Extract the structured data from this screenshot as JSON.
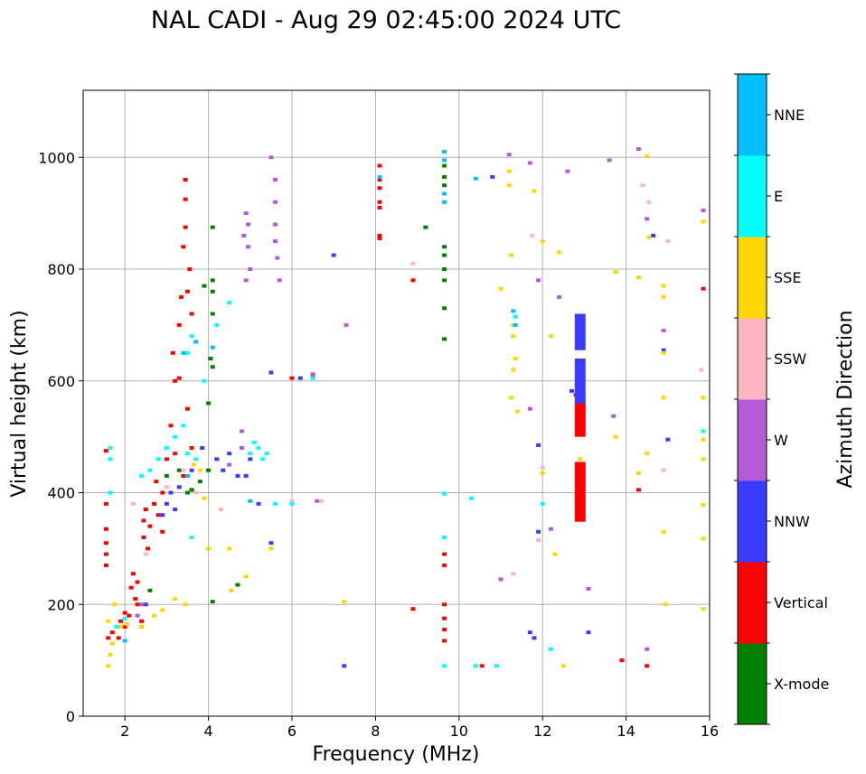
{
  "chart_data": {
    "type": "scatter",
    "title": "NAL CADI - Aug 29 02:45:00 2024 UTC",
    "xlabel": "Frequency (MHz)",
    "ylabel": "Virtual height (km)",
    "xlim": [
      1,
      16
    ],
    "ylim": [
      0,
      1120
    ],
    "xticks": [
      2,
      4,
      6,
      8,
      10,
      12,
      14,
      16
    ],
    "yticks": [
      0,
      200,
      400,
      600,
      800,
      1000
    ],
    "grid": true,
    "colorbar": {
      "title": "Azimuth Direction",
      "categories": [
        {
          "name": "X-mode",
          "color": "#008000"
        },
        {
          "name": "Vertical",
          "color": "#ff0000"
        },
        {
          "name": "NNW",
          "color": "#3b3bff"
        },
        {
          "name": "W",
          "color": "#b65bd6"
        },
        {
          "name": "SSW",
          "color": "#ffb6c1"
        },
        {
          "name": "SSE",
          "color": "#ffd700"
        },
        {
          "name": "E",
          "color": "#00ffff"
        },
        {
          "name": "NNE",
          "color": "#00bfff"
        }
      ]
    },
    "series": [
      {
        "name": "X-mode",
        "points": [
          [
            3.5,
            400
          ],
          [
            3.6,
            405
          ],
          [
            3.8,
            420
          ],
          [
            4.0,
            440
          ],
          [
            4.1,
            780
          ],
          [
            4.1,
            760
          ],
          [
            4.1,
            720
          ],
          [
            4.05,
            640
          ],
          [
            4.1,
            625
          ],
          [
            4.0,
            560
          ],
          [
            4.1,
            875
          ],
          [
            3.9,
            770
          ],
          [
            4.7,
            235
          ],
          [
            4.1,
            205
          ],
          [
            2.6,
            225
          ],
          [
            3.6,
            405
          ],
          [
            9.65,
            985
          ],
          [
            9.65,
            965
          ],
          [
            9.65,
            950
          ],
          [
            9.65,
            840
          ],
          [
            9.65,
            825
          ],
          [
            9.65,
            800
          ],
          [
            9.65,
            780
          ],
          [
            9.65,
            730
          ],
          [
            9.65,
            675
          ],
          [
            9.2,
            875
          ],
          [
            3.3,
            440
          ],
          [
            3.0,
            430
          ]
        ]
      },
      {
        "name": "Vertical",
        "points": [
          [
            1.55,
            270
          ],
          [
            1.55,
            290
          ],
          [
            1.55,
            310
          ],
          [
            1.55,
            335
          ],
          [
            1.55,
            380
          ],
          [
            1.55,
            475
          ],
          [
            1.6,
            140
          ],
          [
            1.7,
            150
          ],
          [
            1.9,
            170
          ],
          [
            2.0,
            185
          ],
          [
            2.1,
            180
          ],
          [
            2.2,
            255
          ],
          [
            2.3,
            240
          ],
          [
            2.45,
            350
          ],
          [
            2.45,
            320
          ],
          [
            2.5,
            370
          ],
          [
            2.55,
            300
          ],
          [
            2.6,
            340
          ],
          [
            2.7,
            380
          ],
          [
            2.8,
            360
          ],
          [
            2.75,
            420
          ],
          [
            2.9,
            400
          ],
          [
            2.9,
            330
          ],
          [
            3.0,
            460
          ],
          [
            3.1,
            520
          ],
          [
            3.2,
            600
          ],
          [
            3.15,
            650
          ],
          [
            3.3,
            700
          ],
          [
            3.35,
            750
          ],
          [
            3.5,
            760
          ],
          [
            3.6,
            720
          ],
          [
            3.55,
            800
          ],
          [
            3.4,
            840
          ],
          [
            3.45,
            875
          ],
          [
            3.45,
            925
          ],
          [
            3.45,
            960
          ],
          [
            3.3,
            605
          ],
          [
            3.5,
            550
          ],
          [
            3.6,
            480
          ],
          [
            3.4,
            430
          ],
          [
            3.2,
            470
          ],
          [
            2.15,
            230
          ],
          [
            2.25,
            210
          ],
          [
            2.3,
            200
          ],
          [
            2.4,
            170
          ],
          [
            2.0,
            160
          ],
          [
            1.85,
            140
          ],
          [
            6.0,
            605
          ],
          [
            6.5,
            610
          ],
          [
            8.1,
            920
          ],
          [
            8.1,
            945
          ],
          [
            8.1,
            960
          ],
          [
            8.1,
            985
          ],
          [
            8.1,
            910
          ],
          [
            8.1,
            860
          ],
          [
            8.1,
            855
          ],
          [
            8.9,
            780
          ],
          [
            8.9,
            192
          ],
          [
            9.65,
            290
          ],
          [
            9.65,
            270
          ],
          [
            9.65,
            200
          ],
          [
            9.65,
            175
          ],
          [
            9.65,
            155
          ],
          [
            9.65,
            135
          ],
          [
            10.55,
            90
          ],
          [
            12.8,
            575
          ],
          [
            12.9,
            545
          ],
          [
            14.5,
            90
          ],
          [
            15.85,
            765
          ],
          [
            14.3,
            405
          ],
          [
            13.9,
            100
          ]
        ]
      },
      {
        "name": "NNW",
        "points": [
          [
            2.9,
            360
          ],
          [
            3.0,
            380
          ],
          [
            3.1,
            400
          ],
          [
            3.2,
            370
          ],
          [
            3.3,
            410
          ],
          [
            3.6,
            440
          ],
          [
            3.85,
            480
          ],
          [
            4.2,
            460
          ],
          [
            4.35,
            440
          ],
          [
            4.5,
            470
          ],
          [
            4.7,
            430
          ],
          [
            4.9,
            430
          ],
          [
            5.0,
            460
          ],
          [
            5.2,
            380
          ],
          [
            5.5,
            310
          ],
          [
            5.5,
            615
          ],
          [
            6.2,
            605
          ],
          [
            2.5,
            200
          ],
          [
            7.0,
            825
          ],
          [
            7.25,
            90
          ],
          [
            10.8,
            965
          ],
          [
            11.9,
            485
          ],
          [
            11.9,
            330
          ],
          [
            11.7,
            150
          ],
          [
            11.8,
            140
          ],
          [
            12.7,
            582
          ],
          [
            13.1,
            150
          ],
          [
            14.65,
            860
          ],
          [
            14.9,
            655
          ],
          [
            15.0,
            495
          ]
        ]
      },
      {
        "name": "W",
        "points": [
          [
            4.9,
            900
          ],
          [
            4.95,
            880
          ],
          [
            4.85,
            860
          ],
          [
            4.95,
            840
          ],
          [
            5.0,
            800
          ],
          [
            4.9,
            780
          ],
          [
            5.6,
            920
          ],
          [
            5.6,
            880
          ],
          [
            5.6,
            850
          ],
          [
            5.65,
            820
          ],
          [
            5.7,
            780
          ],
          [
            5.5,
            1000
          ],
          [
            5.6,
            960
          ],
          [
            4.8,
            510
          ],
          [
            4.8,
            480
          ],
          [
            4.5,
            450
          ],
          [
            2.3,
            180
          ],
          [
            2.4,
            200
          ],
          [
            6.6,
            385
          ],
          [
            6.5,
            612
          ],
          [
            11.2,
            1005
          ],
          [
            11.7,
            990
          ],
          [
            11.0,
            245
          ],
          [
            11.7,
            550
          ],
          [
            11.9,
            780
          ],
          [
            12.2,
            335
          ],
          [
            12.4,
            750
          ],
          [
            12.6,
            975
          ],
          [
            13.1,
            228
          ],
          [
            13.7,
            537
          ],
          [
            13.6,
            995
          ],
          [
            14.3,
            1015
          ],
          [
            14.5,
            890
          ],
          [
            14.5,
            120
          ],
          [
            14.9,
            690
          ],
          [
            15.85,
            905
          ],
          [
            7.3,
            700
          ]
        ]
      },
      {
        "name": "SSW",
        "points": [
          [
            2.2,
            380
          ],
          [
            2.5,
            290
          ],
          [
            3.0,
            410
          ],
          [
            3.4,
            440
          ],
          [
            3.7,
            400
          ],
          [
            4.3,
            370
          ],
          [
            6.0,
            385
          ],
          [
            6.7,
            385
          ],
          [
            8.9,
            810
          ],
          [
            11.3,
            255
          ],
          [
            11.75,
            860
          ],
          [
            11.9,
            315
          ],
          [
            12.0,
            445
          ],
          [
            14.55,
            920
          ],
          [
            14.9,
            440
          ],
          [
            15.0,
            850
          ],
          [
            15.8,
            620
          ],
          [
            14.4,
            950
          ]
        ]
      },
      {
        "name": "SSE",
        "points": [
          [
            1.6,
            90
          ],
          [
            1.65,
            110
          ],
          [
            1.7,
            130
          ],
          [
            1.6,
            170
          ],
          [
            1.75,
            200
          ],
          [
            1.9,
            160
          ],
          [
            2.05,
            165
          ],
          [
            2.4,
            160
          ],
          [
            2.7,
            180
          ],
          [
            2.9,
            190
          ],
          [
            3.2,
            210
          ],
          [
            3.45,
            200
          ],
          [
            3.65,
            450
          ],
          [
            3.8,
            440
          ],
          [
            3.9,
            390
          ],
          [
            4.0,
            300
          ],
          [
            4.5,
            300
          ],
          [
            4.55,
            225
          ],
          [
            4.9,
            250
          ],
          [
            5.5,
            300
          ],
          [
            7.25,
            205
          ],
          [
            11.0,
            765
          ],
          [
            11.2,
            975
          ],
          [
            11.2,
            950
          ],
          [
            11.25,
            825
          ],
          [
            11.3,
            700
          ],
          [
            11.3,
            680
          ],
          [
            11.35,
            640
          ],
          [
            11.3,
            620
          ],
          [
            11.25,
            570
          ],
          [
            11.4,
            545
          ],
          [
            11.8,
            940
          ],
          [
            12.0,
            850
          ],
          [
            12.0,
            435
          ],
          [
            12.2,
            680
          ],
          [
            12.3,
            290
          ],
          [
            12.4,
            830
          ],
          [
            12.5,
            90
          ],
          [
            12.9,
            460
          ],
          [
            13.75,
            500
          ],
          [
            13.75,
            795
          ],
          [
            14.3,
            785
          ],
          [
            14.3,
            435
          ],
          [
            14.5,
            1002
          ],
          [
            14.5,
            470
          ],
          [
            14.55,
            857
          ],
          [
            14.9,
            770
          ],
          [
            14.9,
            750
          ],
          [
            14.9,
            650
          ],
          [
            14.9,
            570
          ],
          [
            14.9,
            330
          ],
          [
            14.95,
            200
          ],
          [
            15.85,
            885
          ],
          [
            15.85,
            570
          ],
          [
            15.85,
            495
          ],
          [
            15.85,
            460
          ],
          [
            15.85,
            378
          ],
          [
            15.85,
            318
          ],
          [
            15.85,
            192
          ]
        ]
      },
      {
        "name": "E",
        "points": [
          [
            1.65,
            460
          ],
          [
            1.65,
            480
          ],
          [
            1.65,
            400
          ],
          [
            2.4,
            430
          ],
          [
            2.6,
            440
          ],
          [
            2.8,
            460
          ],
          [
            3.0,
            480
          ],
          [
            3.2,
            500
          ],
          [
            3.4,
            520
          ],
          [
            3.5,
            470
          ],
          [
            3.7,
            460
          ],
          [
            3.5,
            650
          ],
          [
            3.6,
            680
          ],
          [
            3.9,
            600
          ],
          [
            4.2,
            700
          ],
          [
            4.5,
            740
          ],
          [
            5.0,
            470
          ],
          [
            5.1,
            490
          ],
          [
            5.2,
            480
          ],
          [
            5.3,
            460
          ],
          [
            5.4,
            470
          ],
          [
            5.6,
            380
          ],
          [
            6.0,
            380
          ],
          [
            6.5,
            605
          ],
          [
            3.6,
            320
          ],
          [
            1.8,
            160
          ],
          [
            2.0,
            175
          ],
          [
            9.65,
            320
          ],
          [
            9.65,
            398
          ],
          [
            9.65,
            90
          ],
          [
            10.3,
            390
          ],
          [
            10.4,
            90
          ],
          [
            10.9,
            90
          ],
          [
            11.35,
            715
          ],
          [
            12.2,
            120
          ],
          [
            15.85,
            510
          ],
          [
            12.0,
            380
          ]
        ]
      },
      {
        "name": "NNE",
        "points": [
          [
            3.5,
            430
          ],
          [
            3.4,
            650
          ],
          [
            3.7,
            670
          ],
          [
            4.1,
            660
          ],
          [
            2.0,
            135
          ],
          [
            5.0,
            385
          ],
          [
            9.65,
            1010
          ],
          [
            9.65,
            995
          ],
          [
            9.65,
            935
          ],
          [
            9.65,
            920
          ],
          [
            10.4,
            962
          ],
          [
            11.35,
            700
          ],
          [
            11.3,
            725
          ],
          [
            8.1,
            965
          ]
        ]
      }
    ],
    "blocks": [
      {
        "name": "NNW",
        "x": 12.9,
        "y0": 655,
        "y1": 720
      },
      {
        "name": "NNW",
        "x": 12.9,
        "y0": 560,
        "y1": 640
      },
      {
        "name": "Vertical",
        "x": 12.9,
        "y0": 500,
        "y1": 560
      },
      {
        "name": "Vertical",
        "x": 12.9,
        "y0": 348,
        "y1": 455
      }
    ]
  }
}
